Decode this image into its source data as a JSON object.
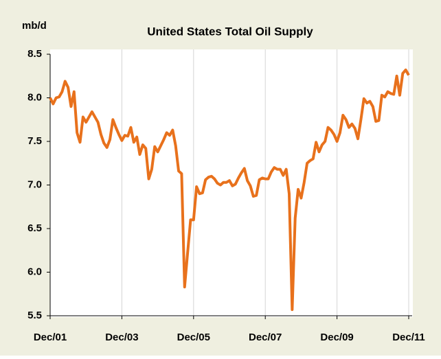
{
  "chart_data": {
    "type": "line",
    "title": "United States Total Oil Supply",
    "y_label": "mb/d",
    "categories": [
      "Dec/01",
      null,
      null,
      null,
      null,
      null,
      null,
      null,
      null,
      null,
      null,
      null,
      null,
      null,
      null,
      null,
      null,
      null,
      null,
      null,
      null,
      null,
      null,
      null,
      "Dec/03",
      null,
      null,
      null,
      null,
      null,
      null,
      null,
      null,
      null,
      null,
      null,
      null,
      null,
      null,
      null,
      null,
      null,
      null,
      null,
      null,
      null,
      null,
      null,
      "Dec/05",
      null,
      null,
      null,
      null,
      null,
      null,
      null,
      null,
      null,
      null,
      null,
      null,
      null,
      null,
      null,
      null,
      null,
      null,
      null,
      null,
      null,
      null,
      null,
      "Dec/07",
      null,
      null,
      null,
      null,
      null,
      null,
      null,
      null,
      null,
      null,
      null,
      null,
      null,
      null,
      null,
      null,
      null,
      null,
      null,
      null,
      null,
      null,
      null,
      "Dec/09",
      null,
      null,
      null,
      null,
      null,
      null,
      null,
      null,
      null,
      null,
      null,
      null,
      null,
      null,
      null,
      null,
      null,
      null,
      null,
      null,
      null,
      null,
      null,
      "Dec/11"
    ],
    "series": [
      {
        "color": "#e8711c",
        "values": [
          8.0,
          7.93,
          8.0,
          8.01,
          8.07,
          8.19,
          8.12,
          7.9,
          8.07,
          7.6,
          7.49,
          7.78,
          7.72,
          7.78,
          7.84,
          7.78,
          7.72,
          7.58,
          7.48,
          7.43,
          7.52,
          7.75,
          7.66,
          7.58,
          7.51,
          7.57,
          7.56,
          7.66,
          7.49,
          7.55,
          7.35,
          7.46,
          7.42,
          7.07,
          7.18,
          7.44,
          7.38,
          7.45,
          7.52,
          7.6,
          7.57,
          7.63,
          7.45,
          7.16,
          7.13,
          5.83,
          6.22,
          6.6,
          6.6,
          6.98,
          6.9,
          6.91,
          7.06,
          7.09,
          7.1,
          7.07,
          7.02,
          7.0,
          7.03,
          7.03,
          7.05,
          6.99,
          7.01,
          7.08,
          7.14,
          7.19,
          7.05,
          6.99,
          6.87,
          6.88,
          7.06,
          7.08,
          7.07,
          7.07,
          7.15,
          7.2,
          7.18,
          7.18,
          7.11,
          7.18,
          6.9,
          5.57,
          6.62,
          6.95,
          6.85,
          7.03,
          7.25,
          7.28,
          7.3,
          7.49,
          7.38,
          7.46,
          7.5,
          7.66,
          7.63,
          7.58,
          7.5,
          7.6,
          7.8,
          7.75,
          7.66,
          7.7,
          7.65,
          7.53,
          7.75,
          7.99,
          7.94,
          7.96,
          7.9,
          7.73,
          7.74,
          8.03,
          8.01,
          8.07,
          8.05,
          8.04,
          8.25,
          8.03,
          8.28,
          8.32,
          8.26
        ]
      }
    ],
    "ylim": [
      5.5,
      8.5
    ],
    "yticks": [
      {
        "value": 5.5,
        "label": "5.5"
      },
      {
        "value": 6,
        "label": "6.0"
      },
      {
        "value": 6.5,
        "label": "6.5"
      },
      {
        "value": 7,
        "label": "7.0"
      },
      {
        "value": 7.5,
        "label": "7.5"
      },
      {
        "value": 8,
        "label": "8.0"
      },
      {
        "value": 8.5,
        "label": "8.5"
      }
    ],
    "grid": "x"
  }
}
